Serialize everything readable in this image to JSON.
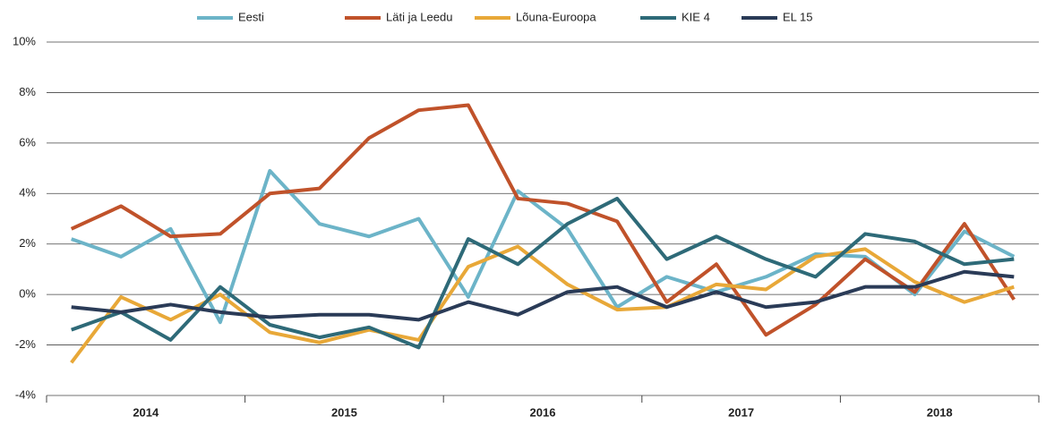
{
  "chart_data": {
    "type": "line",
    "categories": [
      "2014",
      null,
      null,
      null,
      "2015",
      null,
      null,
      null,
      "2016",
      null,
      null,
      null,
      "2017",
      null,
      null,
      null,
      "2018",
      null,
      null,
      null
    ],
    "series": [
      {
        "name": "Eesti",
        "color": "#6cb4c8",
        "values": [
          2.2,
          1.5,
          2.6,
          -1.1,
          4.9,
          2.8,
          2.3,
          3.0,
          -0.1,
          4.1,
          2.6,
          -0.5,
          0.7,
          0.1,
          0.7,
          1.6,
          1.5,
          0.0,
          2.5,
          1.5
        ]
      },
      {
        "name": "Läti ja Leedu",
        "color": "#c0522a",
        "values": [
          2.6,
          3.5,
          2.3,
          2.4,
          4.0,
          4.2,
          6.2,
          7.3,
          7.5,
          3.8,
          3.6,
          2.9,
          -0.3,
          1.2,
          -1.6,
          -0.4,
          1.4,
          0.1,
          2.8,
          -0.2
        ]
      },
      {
        "name": "Lõuna-Euroopa",
        "color": "#e8a838",
        "values": [
          -2.7,
          -0.1,
          -1.0,
          0.0,
          -1.5,
          -1.9,
          -1.4,
          -1.8,
          1.1,
          1.9,
          0.4,
          -0.6,
          -0.5,
          0.4,
          0.2,
          1.5,
          1.8,
          0.5,
          -0.3,
          0.3
        ]
      },
      {
        "name": "KIE 4",
        "color": "#2e6a78",
        "values": [
          -1.4,
          -0.7,
          -1.8,
          0.3,
          -1.2,
          -1.7,
          -1.3,
          -2.1,
          2.2,
          1.2,
          2.8,
          3.8,
          1.4,
          2.3,
          1.4,
          0.7,
          2.4,
          2.1,
          1.2,
          1.4
        ]
      },
      {
        "name": "EL 15",
        "color": "#2a3b57",
        "values": [
          -0.5,
          -0.7,
          -0.4,
          -0.7,
          -0.9,
          -0.8,
          -0.8,
          -1.0,
          -0.3,
          -0.8,
          0.1,
          0.3,
          -0.5,
          0.1,
          -0.5,
          -0.3,
          0.3,
          0.3,
          0.9,
          0.7
        ]
      }
    ],
    "ylim": [
      -4,
      10
    ],
    "yticks": [
      {
        "value": -4,
        "label": "-4%"
      },
      {
        "value": -2,
        "label": "-2%"
      },
      {
        "value": 0,
        "label": "0%"
      },
      {
        "value": 2,
        "label": "2%"
      },
      {
        "value": 4,
        "label": "4%"
      },
      {
        "value": 6,
        "label": "6%"
      },
      {
        "value": 8,
        "label": "8%"
      },
      {
        "value": 10,
        "label": "10%"
      }
    ],
    "grid": true
  }
}
